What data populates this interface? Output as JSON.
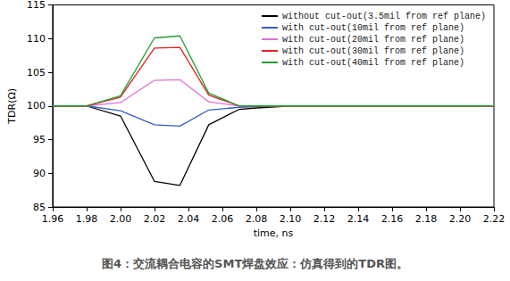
{
  "chart_data": {
    "type": "line",
    "title": "图4：交流耦合电容的SMT焊盘效应：仿真得到的TDR图。",
    "x_label": "time, ns",
    "y_label": "TDR(Ω)",
    "x": [
      1.96,
      1.98,
      2.0,
      2.02,
      2.035,
      2.052,
      2.07,
      2.08,
      2.1,
      2.22
    ],
    "series": [
      {
        "name": "without cut-out(3.5mil from ref plane)",
        "color": "#000000",
        "values": [
          100,
          100,
          98.5,
          88.8,
          88.2,
          97.2,
          99.5,
          99.7,
          100,
          100
        ]
      },
      {
        "name": "with cut-out(10mil from ref plane)",
        "color": "#3060c0",
        "values": [
          100,
          100,
          99.3,
          97.2,
          97.0,
          99.4,
          99.8,
          99.9,
          100,
          100
        ]
      },
      {
        "name": "with cut-out(20mil from ref plane)",
        "color": "#e070d8",
        "values": [
          100,
          100,
          100.5,
          103.8,
          103.9,
          100.6,
          100,
          100,
          100,
          100
        ]
      },
      {
        "name": "with cut-out(30mil from ref plane)",
        "color": "#e02020",
        "values": [
          100,
          100,
          101.3,
          108.6,
          108.7,
          101.6,
          100,
          100,
          100,
          100
        ]
      },
      {
        "name": "with cut-out(40mil from ref plane)",
        "color": "#20a030",
        "values": [
          100,
          100,
          101.5,
          110.1,
          110.4,
          101.9,
          100,
          100,
          100,
          100
        ]
      }
    ],
    "xlim": [
      1.96,
      2.22
    ],
    "xticks": [
      1.96,
      1.98,
      {
        "value": 2,
        "label": "2.00"
      },
      2.02,
      2.04,
      2.06,
      2.08,
      {
        "value": 2.1,
        "label": "2.10"
      },
      2.12,
      2.14,
      2.16,
      2.18,
      {
        "value": 2.2,
        "label": "2.20"
      },
      2.22
    ],
    "ylim": [
      85,
      115
    ],
    "yticks": [
      85,
      90,
      95,
      100,
      105,
      110,
      115
    ],
    "grid": false,
    "legend": "upper right"
  }
}
